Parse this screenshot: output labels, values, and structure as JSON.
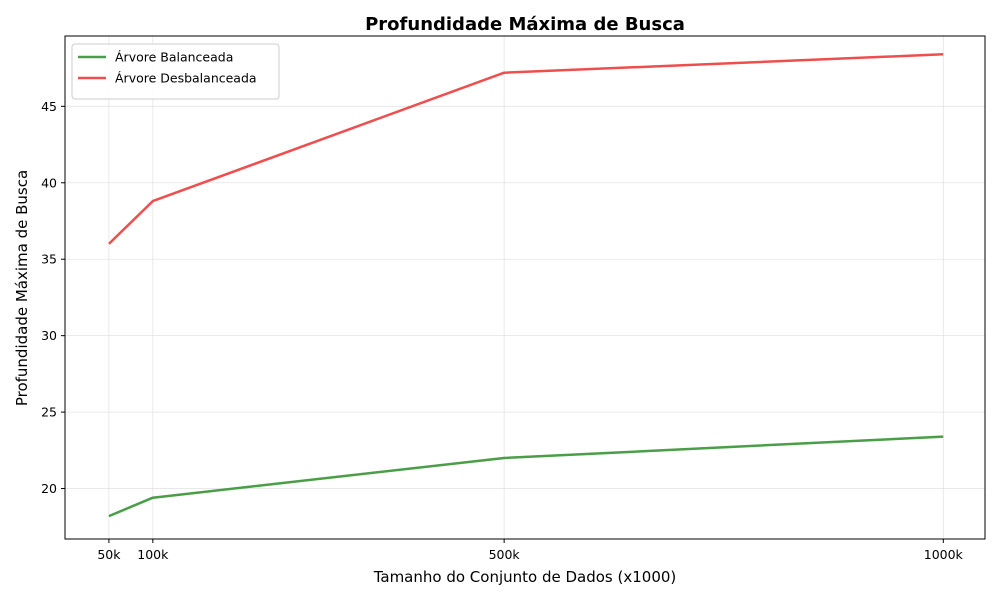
{
  "chart_data": {
    "type": "line",
    "title": "Profundidade Máxima de Busca",
    "xlabel": "Tamanho do Conjunto de Dados (x1000)",
    "ylabel": "Profundidade Máxima de Busca",
    "x": [
      50,
      100,
      500,
      1000
    ],
    "x_tick_labels": [
      "50k",
      "100k",
      "500k",
      "1000k"
    ],
    "xlim": [
      0,
      1047.5
    ],
    "ylim": [
      16.7,
      49.6
    ],
    "y_ticks": [
      20,
      25,
      30,
      35,
      40,
      45
    ],
    "grid": true,
    "legend_position": "top-left",
    "series": [
      {
        "name": "Árvore Balanceada",
        "color": "#4a9e47",
        "values": [
          18.2,
          19.4,
          22.0,
          23.4
        ]
      },
      {
        "name": "Árvore Desbalanceada",
        "color": "#ef4e4e",
        "values": [
          36.0,
          38.8,
          47.2,
          48.4
        ]
      }
    ]
  }
}
